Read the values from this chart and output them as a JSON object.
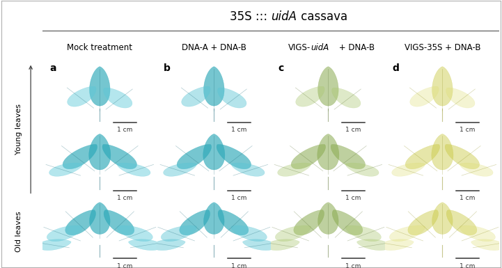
{
  "title_prefix": "35S ::: ",
  "title_italic": "uidA",
  "title_suffix": " cassava",
  "col_headers": [
    "Mock treatment",
    "DNA-A + DNA-B",
    "VIGS-​uidA​ + DNA-B",
    "VIGS-35S + DNA-B"
  ],
  "col_header_2_pre": "VIGS-",
  "col_header_2_italic": "uidA",
  "col_header_2_post": " + DNA-B",
  "panel_labels": [
    "a",
    "b",
    "c",
    "d"
  ],
  "row_label_young": "Young leaves",
  "row_label_old": "Old leaves",
  "scale_bar_text": "1 cm",
  "background_color": "#ffffff",
  "border_color": "#b0b0b0",
  "n_rows": 3,
  "n_cols": 4,
  "title_fontsize": 12,
  "col_header_fontsize": 8.5,
  "panel_label_fontsize": 10,
  "row_label_fontsize": 8,
  "scale_bar_fontsize": 6.5,
  "figure_width": 7.21,
  "figure_height": 3.85,
  "dpi": 100,
  "leaf_bg_color": "#f5f5f5",
  "col_leaf_colors": [
    "#2ba8b8",
    "#2da8b8",
    "#8aaa50",
    "#c8c840"
  ],
  "col_leaf_colors_light": [
    "#5cc8d8",
    "#5ac5d5",
    "#aac870",
    "#dede70"
  ],
  "vein_colors": [
    "#1a6878",
    "#1a6878",
    "#5a7030",
    "#909020"
  ],
  "col_alphas": [
    0.65,
    0.65,
    0.55,
    0.45
  ]
}
